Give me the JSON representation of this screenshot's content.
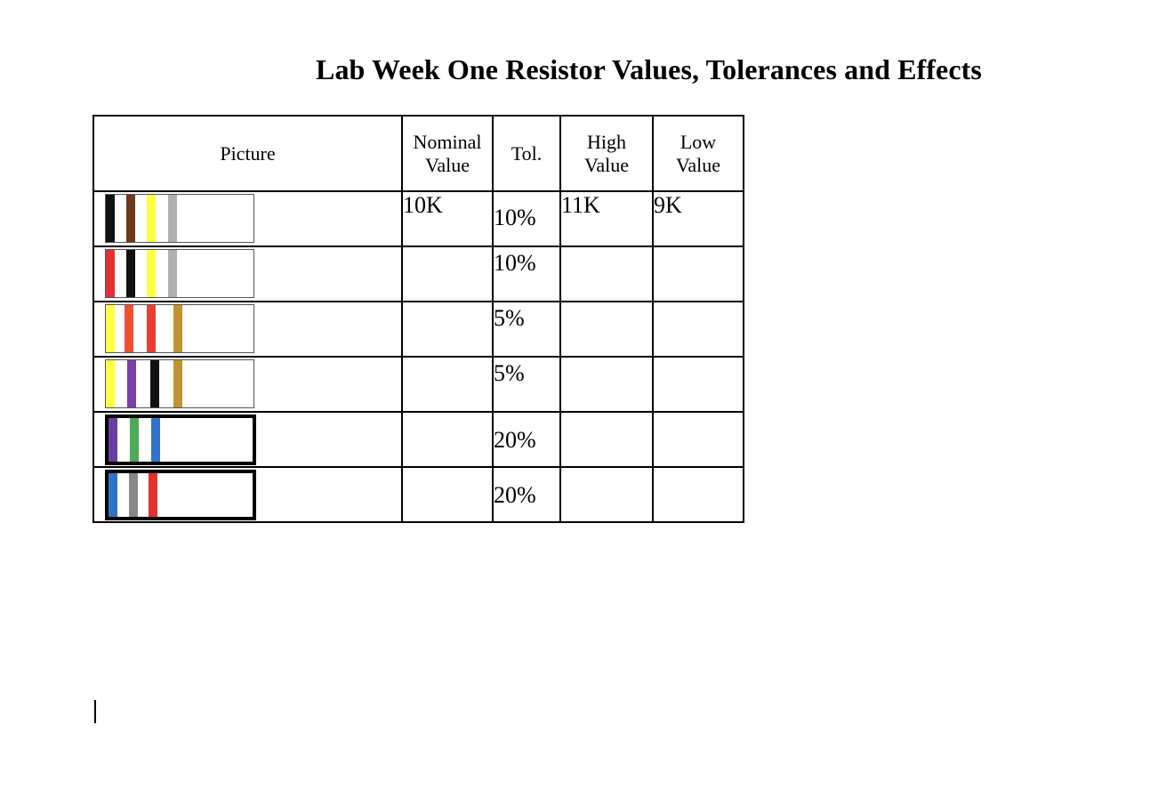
{
  "title": "Lab Week One Resistor Values, Tolerances and Effects",
  "table": {
    "headers": {
      "picture": "Picture",
      "nominal_line1": "Nominal",
      "nominal_line2": "Value",
      "tol": "Tol.",
      "high_line1": "High",
      "high_line2": "Value",
      "low_line1": "Low",
      "low_line2": "Value"
    },
    "rows": [
      {
        "bands": [
          "#111111",
          "#6b3a1a",
          "#ffff44",
          "#b0b0b0"
        ],
        "nominal": "10K",
        "tol": "10%",
        "high": "11K",
        "low": "9K"
      },
      {
        "bands": [
          "#e53030",
          "#111111",
          "#ffff44",
          "#b0b0b0"
        ],
        "nominal": "",
        "tol": "10%",
        "high": "",
        "low": ""
      },
      {
        "bands": [
          "#ffff44",
          "#f05030",
          "#e84030",
          "#c09430"
        ],
        "nominal": "",
        "tol": "5%",
        "high": "",
        "low": ""
      },
      {
        "bands": [
          "#ffff44",
          "#7a3fa8",
          "#111111",
          "#c09430"
        ],
        "nominal": "",
        "tol": "5%",
        "high": "",
        "low": ""
      },
      {
        "bands": [
          "#6a3ea0",
          "#4caa5a",
          "#2f74c8"
        ],
        "nominal": "",
        "tol": "20%",
        "high": "",
        "low": ""
      },
      {
        "bands": [
          "#2f74c8",
          "#888888",
          "#e53030"
        ],
        "nominal": "",
        "tol": "20%",
        "high": "",
        "low": ""
      }
    ]
  }
}
